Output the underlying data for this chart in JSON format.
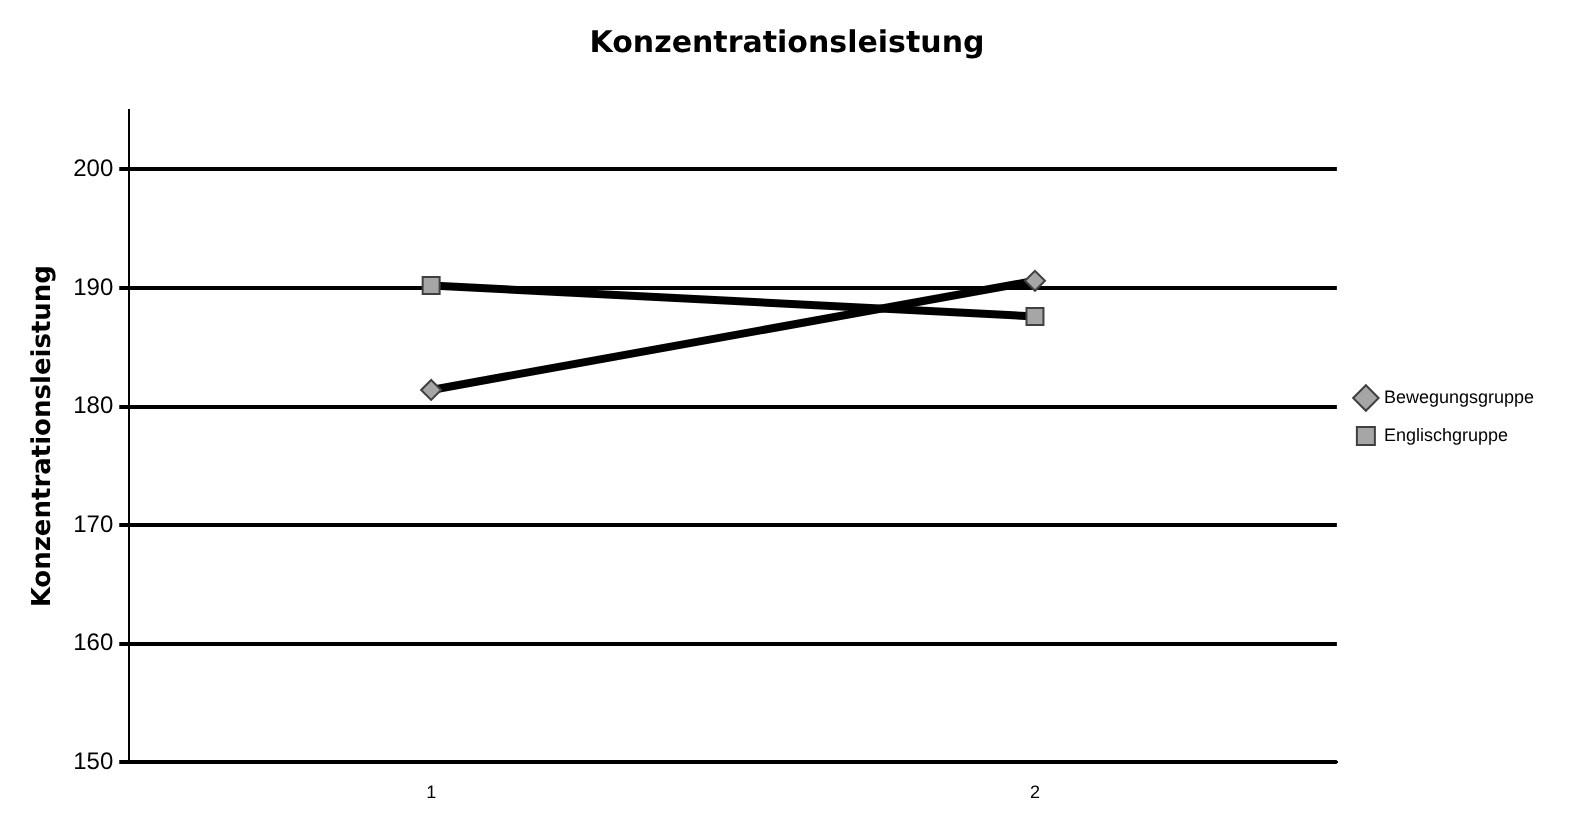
{
  "chart_data": {
    "type": "line",
    "title": "Konzentrationsleistung",
    "ylabel": "Konzentrationsleistung",
    "categories": [
      "1",
      "2"
    ],
    "series": [
      {
        "name": "Bewegungsgruppe",
        "color": "#000000",
        "marker": "diamond",
        "values": [
          181.4,
          190.6
        ]
      },
      {
        "name": "Englischgruppe",
        "color": "#000000",
        "marker": "square",
        "values": [
          190.2,
          187.6
        ]
      }
    ],
    "ylim": [
      150,
      205
    ],
    "yticks": [
      150,
      160,
      170,
      180,
      190,
      200
    ],
    "grid": "y",
    "legend": "right",
    "line_style": "solid"
  }
}
